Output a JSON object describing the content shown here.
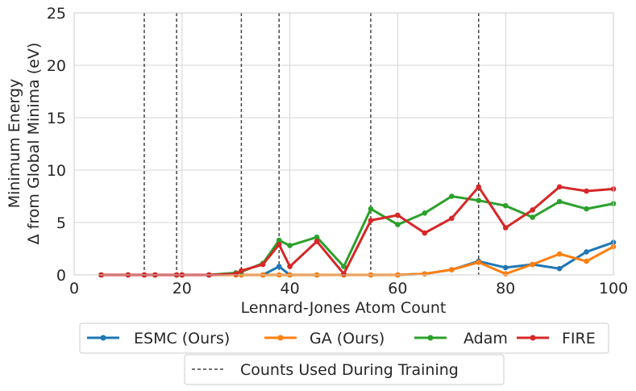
{
  "chart_data": {
    "type": "line",
    "xlabel": "Lennard-Jones Atom Count",
    "ylabel": [
      "Minimum Energy",
      "Δ from Global Minima (eV)"
    ],
    "xlim": [
      0,
      100
    ],
    "ylim": [
      0,
      25
    ],
    "xticks": [
      0,
      20,
      40,
      60,
      80,
      100
    ],
    "yticks": [
      0,
      5,
      10,
      15,
      20,
      25
    ],
    "grid": true,
    "x": [
      5,
      10,
      13,
      15,
      19,
      20,
      25,
      30,
      31,
      35,
      38,
      40,
      45,
      50,
      55,
      60,
      65,
      70,
      75,
      80,
      85,
      90,
      95,
      100
    ],
    "series": [
      {
        "name": "ESMC (Ours)",
        "color": "#1f77b4",
        "values": [
          0,
          0,
          0,
          0,
          0,
          0,
          0,
          0,
          0,
          0,
          0.8,
          0,
          0,
          0,
          0,
          0,
          0.1,
          0.5,
          1.3,
          0.7,
          1.0,
          0.6,
          2.2,
          3.1
        ]
      },
      {
        "name": "GA (Ours)",
        "color": "#ff7f0e",
        "values": [
          0,
          0,
          0,
          0,
          0,
          0,
          0,
          0,
          0,
          0,
          0,
          0,
          0,
          0,
          0,
          0,
          0.1,
          0.5,
          1.2,
          0.1,
          1.0,
          2.0,
          1.3,
          2.7
        ]
      },
      {
        "name": "Adam",
        "color": "#2ca02c",
        "values": [
          0,
          0,
          0,
          0,
          0,
          0,
          0,
          0.2,
          0.3,
          1.1,
          3.3,
          2.8,
          3.6,
          0.8,
          6.3,
          4.8,
          5.9,
          7.5,
          7.1,
          6.6,
          5.5,
          7.0,
          6.3,
          6.8
        ]
      },
      {
        "name": "FIRE",
        "color": "#d62728",
        "values": [
          0,
          0,
          0,
          0,
          0,
          0,
          0,
          0.1,
          0.4,
          1.0,
          2.9,
          0.8,
          3.2,
          0.1,
          5.2,
          5.7,
          4.0,
          5.4,
          8.4,
          4.5,
          6.2,
          8.4,
          8.0,
          8.2
        ]
      }
    ],
    "training_counts": [
      13,
      19,
      31,
      38,
      55,
      75
    ],
    "legend": {
      "row1": [
        "ESMC (Ours)",
        "GA (Ours)",
        "Adam",
        "FIRE"
      ],
      "row2": "Counts Used During Training",
      "placement": "bottom"
    }
  }
}
